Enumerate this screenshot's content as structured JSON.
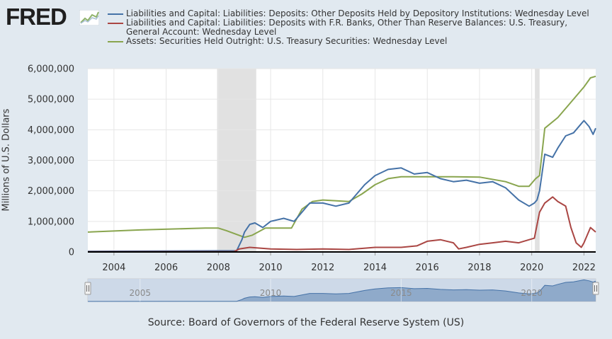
{
  "logo": {
    "text": "FRED",
    "icon": "fred-line-chart-icon"
  },
  "source": "Source: Board of Governors of the Federal Reserve System (US)",
  "colors": {
    "background": "#e1e9f0",
    "plot": "#ffffff",
    "recession": "#e1e1e1",
    "navigator": "#c7d5e6"
  },
  "chart_data": {
    "type": "line",
    "ylabel": "Millions of U.S. Dollars",
    "ylim": [
      0,
      6000000
    ],
    "yticks": [
      0,
      1000000,
      2000000,
      3000000,
      4000000,
      5000000,
      6000000
    ],
    "ytick_labels": [
      "0",
      "1,000,000",
      "2,000,000",
      "3,000,000",
      "4,000,000",
      "5,000,000",
      "6,000,000"
    ],
    "xlim": [
      2003.0,
      2022.45
    ],
    "xticks": [
      2004,
      2006,
      2008,
      2010,
      2012,
      2014,
      2016,
      2018,
      2020,
      2022
    ],
    "xtick_labels": [
      "2004",
      "2006",
      "2008",
      "2010",
      "2012",
      "2014",
      "2016",
      "2018",
      "2020",
      "2022"
    ],
    "grid": true,
    "legend": "top",
    "recessions": [
      [
        2007.95,
        2009.45
      ],
      [
        2020.12,
        2020.3
      ]
    ],
    "series": [
      {
        "name": "Liabilities and Capital: Liabilities: Deposits: Other Deposits Held by Depository Institutions: Wednesday Level",
        "color": "#4572a7",
        "x": [
          2003.0,
          2008.7,
          2008.9,
          2009.0,
          2009.2,
          2009.4,
          2009.7,
          2010.0,
          2010.5,
          2010.9,
          2011.2,
          2011.5,
          2012.0,
          2012.5,
          2013.0,
          2013.3,
          2013.6,
          2014.0,
          2014.5,
          2015.0,
          2015.5,
          2016.0,
          2016.5,
          2017.0,
          2017.5,
          2018.0,
          2018.5,
          2019.0,
          2019.5,
          2019.9,
          2020.1,
          2020.2,
          2020.3,
          2020.5,
          2020.8,
          2021.0,
          2021.3,
          2021.6,
          2021.9,
          2022.0,
          2022.2,
          2022.35,
          2022.45
        ],
        "y": [
          20000,
          40000,
          400000,
          650000,
          900000,
          950000,
          800000,
          1000000,
          1100000,
          1000000,
          1300000,
          1600000,
          1600000,
          1500000,
          1600000,
          1900000,
          2200000,
          2500000,
          2700000,
          2750000,
          2550000,
          2600000,
          2400000,
          2300000,
          2350000,
          2250000,
          2300000,
          2100000,
          1700000,
          1500000,
          1600000,
          1700000,
          2000000,
          3200000,
          3100000,
          3400000,
          3800000,
          3900000,
          4200000,
          4300000,
          4100000,
          3850000,
          4050000
        ]
      },
      {
        "name": "Liabilities and Capital: Liabilities: Deposits with F.R. Banks, Other Than Reserve Balances: U.S. Treasury, General Account: Wednesday Level",
        "color": "#aa4643",
        "x": [
          2003.0,
          2008.6,
          2008.8,
          2009.2,
          2010.0,
          2011.0,
          2012.0,
          2013.0,
          2014.0,
          2015.0,
          2015.6,
          2016.0,
          2016.5,
          2017.0,
          2017.2,
          2017.5,
          2018.0,
          2018.5,
          2019.0,
          2019.5,
          2019.9,
          2020.1,
          2020.3,
          2020.5,
          2020.8,
          2021.0,
          2021.3,
          2021.5,
          2021.7,
          2021.9,
          2022.0,
          2022.1,
          2022.25,
          2022.45
        ],
        "y": [
          5000,
          10000,
          100000,
          150000,
          100000,
          80000,
          100000,
          80000,
          150000,
          150000,
          200000,
          350000,
          400000,
          300000,
          100000,
          150000,
          250000,
          300000,
          350000,
          300000,
          400000,
          450000,
          1300000,
          1600000,
          1800000,
          1650000,
          1500000,
          800000,
          300000,
          150000,
          300000,
          500000,
          800000,
          650000
        ]
      },
      {
        "name": "Assets: Securities Held Outright: U.S. Treasury Securities: Wednesday Level",
        "color": "#89a54e",
        "x": [
          2003.0,
          2005.0,
          2007.5,
          2008.0,
          2008.3,
          2009.0,
          2009.3,
          2009.8,
          2010.8,
          2011.2,
          2011.6,
          2012.0,
          2013.0,
          2013.5,
          2014.0,
          2014.5,
          2015.0,
          2016.0,
          2017.0,
          2018.0,
          2019.0,
          2019.5,
          2019.9,
          2020.15,
          2020.3,
          2020.5,
          2021.0,
          2021.5,
          2022.0,
          2022.25,
          2022.45
        ],
        "y": [
          650000,
          720000,
          780000,
          780000,
          700000,
          480000,
          550000,
          780000,
          780000,
          1400000,
          1650000,
          1700000,
          1650000,
          1900000,
          2200000,
          2400000,
          2460000,
          2460000,
          2460000,
          2450000,
          2300000,
          2150000,
          2150000,
          2400000,
          2500000,
          4050000,
          4400000,
          4900000,
          5400000,
          5700000,
          5750000
        ]
      }
    ]
  },
  "navigator": {
    "tick_labels": [
      "2005",
      "2010",
      "2015",
      "2020"
    ],
    "ticks": [
      2005,
      2010,
      2015,
      2020
    ]
  }
}
